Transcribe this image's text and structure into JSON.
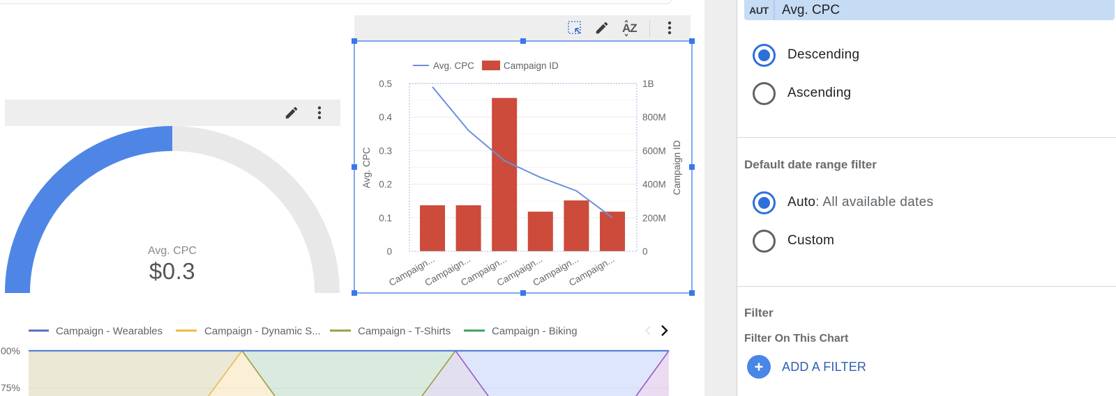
{
  "gauge_card": {
    "label": "Avg. CPC",
    "value": "$0.3",
    "toolbar": {
      "edit_icon": "pencil-icon",
      "more_icon": "kebab-icon"
    }
  },
  "combo_card": {
    "toolbar": {
      "select_icon": "select-area-icon",
      "edit_icon": "pencil-icon",
      "sort_icon": "sort-az-icon",
      "sort_glyph": "AZ",
      "more_icon": "kebab-icon"
    }
  },
  "area_card": {
    "nav": {
      "prev_icon": "chevron-left-icon",
      "next_icon": "chevron-right-icon"
    }
  },
  "panel": {
    "sort_field": {
      "badge": "AUT",
      "value": "Avg. CPC"
    },
    "sort_order": {
      "options": [
        {
          "label": "Descending",
          "selected": true
        },
        {
          "label": "Ascending",
          "selected": false
        }
      ]
    },
    "date_range": {
      "heading": "Default date range filter",
      "options": [
        {
          "label": "Auto",
          "detail": ": All available dates",
          "selected": true
        },
        {
          "label": "Custom",
          "detail": "",
          "selected": false
        }
      ]
    },
    "filter": {
      "heading": "Filter",
      "subheading": "Filter On This Chart",
      "add_label": "ADD A FILTER"
    }
  },
  "colors": {
    "selection": "#3b78e7",
    "gauge_fill": "#4f86e6",
    "gauge_track": "#e8e8e8",
    "bar": "#cc4b3b",
    "line": "#6a8fdc",
    "radio_selected": "#2f6fdc",
    "link": "#2f5fb3",
    "sort_field_bg": "#c6dcf5",
    "series_wearables": "#5b6cc4",
    "series_dynamic": "#f0b93a",
    "series_tshirts": "#9d9d3e",
    "series_biking": "#3ba05c"
  },
  "chart_data": [
    {
      "type": "gauge",
      "title": "Avg. CPC",
      "value": 0.3,
      "display_value": "$0.3",
      "fill_fraction": 0.5
    },
    {
      "type": "bar",
      "subtype": "combo bar + line (dual axis)",
      "categories": [
        "Campaign...",
        "Campaign...",
        "Campaign...",
        "Campaign...",
        "Campaign...",
        "Campaign..."
      ],
      "series": [
        {
          "name": "Campaign ID",
          "type": "bar",
          "axis": "right",
          "values": [
            274000000,
            274000000,
            914000000,
            236000000,
            303000000,
            236000000
          ]
        },
        {
          "name": "Avg. CPC",
          "type": "line",
          "axis": "left",
          "values": [
            0.49,
            0.36,
            0.27,
            0.22,
            0.18,
            0.1
          ]
        }
      ],
      "legend": [
        "Avg. CPC",
        "Campaign ID"
      ],
      "legend_position": "top",
      "left_axis": {
        "title": "Avg. CPC",
        "range": [
          0,
          0.5
        ],
        "ticks": [
          0,
          0.1,
          0.2,
          0.3,
          0.4,
          0.5
        ],
        "tick_labels": [
          "0",
          "0.1",
          "0.2",
          "0.3",
          "0.4",
          "0.5"
        ]
      },
      "right_axis": {
        "title": "Campaign ID",
        "range": [
          0,
          1000000000
        ],
        "ticks": [
          0,
          200000000,
          400000000,
          600000000,
          800000000,
          1000000000
        ],
        "tick_labels": [
          "0",
          "200M",
          "400M",
          "600M",
          "800M",
          "1B"
        ]
      },
      "xlabel": "",
      "grid": true
    },
    {
      "type": "area",
      "stacked": "100%",
      "legend": [
        "Campaign - Wearables",
        "Campaign - Dynamic S...",
        "Campaign - T-Shirts",
        "Campaign - Biking"
      ],
      "legend_position": "top",
      "y_tick_labels": [
        "100%",
        "75%"
      ],
      "x_points": 4,
      "grid": true
    }
  ]
}
